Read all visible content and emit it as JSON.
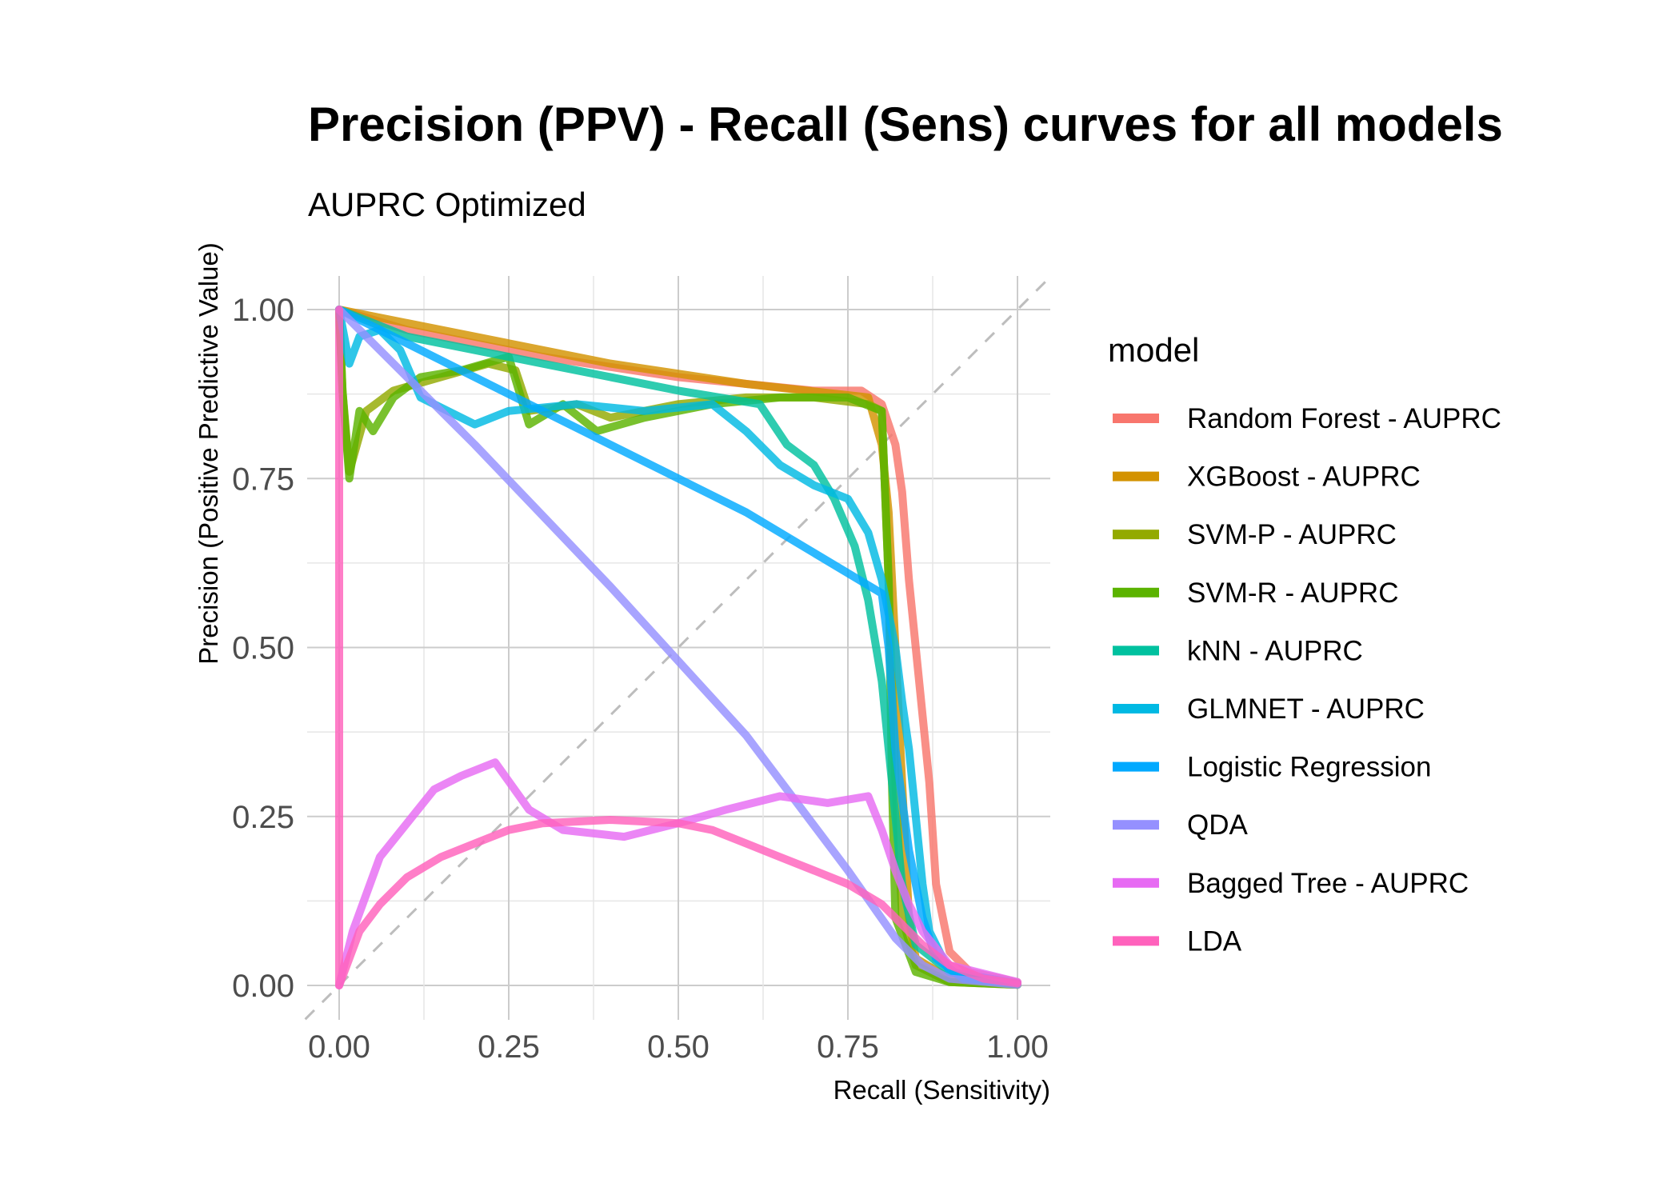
{
  "chart_data": {
    "type": "line",
    "title": "Precision (PPV) - Recall (Sens) curves for all models",
    "subtitle": "AUPRC Optimized",
    "xlabel": "Recall (Sensitivity)",
    "ylabel": "Precision (Positive Predictive Value)",
    "xlim": [
      0,
      1
    ],
    "ylim": [
      0,
      1
    ],
    "x_ticks": [
      "0.00",
      "0.25",
      "0.50",
      "0.75",
      "1.00"
    ],
    "y_ticks": [
      "0.00",
      "0.25",
      "0.50",
      "0.75",
      "1.00"
    ],
    "grid": true,
    "reference_line": {
      "style": "dashed",
      "color": "#bdbdbd",
      "from": [
        0,
        0
      ],
      "to": [
        1,
        1
      ]
    },
    "legend": {
      "title": "model",
      "position": "right"
    },
    "series": [
      {
        "name": "Random Forest - AUPRC",
        "color": "#F8766D",
        "points": [
          [
            0,
            1
          ],
          [
            0.1,
            0.97
          ],
          [
            0.3,
            0.93
          ],
          [
            0.5,
            0.9
          ],
          [
            0.7,
            0.88
          ],
          [
            0.77,
            0.88
          ],
          [
            0.8,
            0.86
          ],
          [
            0.82,
            0.8
          ],
          [
            0.83,
            0.73
          ],
          [
            0.84,
            0.6
          ],
          [
            0.85,
            0.5
          ],
          [
            0.86,
            0.4
          ],
          [
            0.87,
            0.3
          ],
          [
            0.88,
            0.15
          ],
          [
            0.9,
            0.05
          ],
          [
            0.93,
            0.02
          ],
          [
            1,
            0.005
          ]
        ]
      },
      {
        "name": "XGBoost - AUPRC",
        "color": "#D39200",
        "points": [
          [
            0,
            1
          ],
          [
            0.2,
            0.96
          ],
          [
            0.4,
            0.92
          ],
          [
            0.6,
            0.89
          ],
          [
            0.78,
            0.87
          ],
          [
            0.8,
            0.8
          ],
          [
            0.81,
            0.7
          ],
          [
            0.82,
            0.5
          ],
          [
            0.83,
            0.3
          ],
          [
            0.84,
            0.1
          ],
          [
            0.85,
            0.04
          ],
          [
            0.9,
            0.01
          ],
          [
            1,
            0.003
          ]
        ]
      },
      {
        "name": "SVM-P - AUPRC",
        "color": "#93AA00",
        "points": [
          [
            0,
            1
          ],
          [
            0.005,
            0.88
          ],
          [
            0.015,
            0.76
          ],
          [
            0.04,
            0.85
          ],
          [
            0.08,
            0.88
          ],
          [
            0.15,
            0.9
          ],
          [
            0.22,
            0.92
          ],
          [
            0.26,
            0.91
          ],
          [
            0.28,
            0.85
          ],
          [
            0.35,
            0.86
          ],
          [
            0.4,
            0.84
          ],
          [
            0.5,
            0.86
          ],
          [
            0.6,
            0.87
          ],
          [
            0.7,
            0.87
          ],
          [
            0.78,
            0.86
          ],
          [
            0.8,
            0.85
          ],
          [
            0.81,
            0.6
          ],
          [
            0.82,
            0.3
          ],
          [
            0.83,
            0.1
          ],
          [
            0.85,
            0.03
          ],
          [
            0.9,
            0.005
          ],
          [
            1,
            0.001
          ]
        ]
      },
      {
        "name": "SVM-R - AUPRC",
        "color": "#5BB300",
        "points": [
          [
            0,
            1
          ],
          [
            0.005,
            0.88
          ],
          [
            0.015,
            0.75
          ],
          [
            0.03,
            0.85
          ],
          [
            0.05,
            0.82
          ],
          [
            0.08,
            0.87
          ],
          [
            0.12,
            0.9
          ],
          [
            0.18,
            0.91
          ],
          [
            0.25,
            0.93
          ],
          [
            0.28,
            0.83
          ],
          [
            0.33,
            0.86
          ],
          [
            0.38,
            0.82
          ],
          [
            0.45,
            0.84
          ],
          [
            0.55,
            0.86
          ],
          [
            0.65,
            0.87
          ],
          [
            0.75,
            0.87
          ],
          [
            0.8,
            0.85
          ],
          [
            0.81,
            0.6
          ],
          [
            0.815,
            0.3
          ],
          [
            0.82,
            0.1
          ],
          [
            0.85,
            0.02
          ],
          [
            0.9,
            0.005
          ],
          [
            1,
            0.001
          ]
        ]
      },
      {
        "name": "kNN - AUPRC",
        "color": "#00C19F",
        "points": [
          [
            0,
            1
          ],
          [
            0.1,
            0.96
          ],
          [
            0.3,
            0.92
          ],
          [
            0.5,
            0.88
          ],
          [
            0.62,
            0.86
          ],
          [
            0.66,
            0.8
          ],
          [
            0.7,
            0.77
          ],
          [
            0.73,
            0.72
          ],
          [
            0.76,
            0.65
          ],
          [
            0.78,
            0.57
          ],
          [
            0.8,
            0.45
          ],
          [
            0.81,
            0.35
          ],
          [
            0.82,
            0.25
          ],
          [
            0.83,
            0.15
          ],
          [
            0.85,
            0.06
          ],
          [
            0.9,
            0.02
          ],
          [
            1,
            0.003
          ]
        ]
      },
      {
        "name": "GLMNET - AUPRC",
        "color": "#00B9E3",
        "points": [
          [
            0,
            1
          ],
          [
            0.015,
            0.92
          ],
          [
            0.03,
            0.96
          ],
          [
            0.06,
            0.97
          ],
          [
            0.09,
            0.94
          ],
          [
            0.12,
            0.87
          ],
          [
            0.2,
            0.83
          ],
          [
            0.25,
            0.85
          ],
          [
            0.35,
            0.86
          ],
          [
            0.45,
            0.85
          ],
          [
            0.55,
            0.86
          ],
          [
            0.6,
            0.82
          ],
          [
            0.65,
            0.77
          ],
          [
            0.7,
            0.74
          ],
          [
            0.75,
            0.72
          ],
          [
            0.78,
            0.67
          ],
          [
            0.8,
            0.6
          ],
          [
            0.82,
            0.5
          ],
          [
            0.83,
            0.42
          ],
          [
            0.84,
            0.35
          ],
          [
            0.85,
            0.25
          ],
          [
            0.86,
            0.15
          ],
          [
            0.87,
            0.08
          ],
          [
            0.9,
            0.02
          ],
          [
            1,
            0.003
          ]
        ]
      },
      {
        "name": "Logistic Regression",
        "color": "#00A9FF",
        "points": [
          [
            0,
            1
          ],
          [
            0.3,
            0.85
          ],
          [
            0.6,
            0.7
          ],
          [
            0.8,
            0.58
          ],
          [
            0.81,
            0.5
          ],
          [
            0.82,
            0.35
          ],
          [
            0.84,
            0.2
          ],
          [
            0.86,
            0.1
          ],
          [
            0.88,
            0.04
          ],
          [
            0.92,
            0.01
          ],
          [
            1,
            0.003
          ]
        ]
      },
      {
        "name": "QDA",
        "color": "#9590FF",
        "points": [
          [
            0,
            1
          ],
          [
            0.2,
            0.8
          ],
          [
            0.4,
            0.59
          ],
          [
            0.6,
            0.37
          ],
          [
            0.75,
            0.17
          ],
          [
            0.82,
            0.07
          ],
          [
            0.86,
            0.03
          ],
          [
            0.9,
            0.01
          ],
          [
            1,
            0.001
          ]
        ]
      },
      {
        "name": "Bagged Tree - AUPRC",
        "color": "#E76BF3",
        "points": [
          [
            0,
            0
          ],
          [
            0.02,
            0.08
          ],
          [
            0.06,
            0.19
          ],
          [
            0.1,
            0.24
          ],
          [
            0.14,
            0.29
          ],
          [
            0.18,
            0.31
          ],
          [
            0.23,
            0.33
          ],
          [
            0.28,
            0.26
          ],
          [
            0.33,
            0.23
          ],
          [
            0.42,
            0.22
          ],
          [
            0.5,
            0.24
          ],
          [
            0.57,
            0.26
          ],
          [
            0.65,
            0.28
          ],
          [
            0.72,
            0.27
          ],
          [
            0.78,
            0.28
          ],
          [
            0.8,
            0.23
          ],
          [
            0.82,
            0.17
          ],
          [
            0.84,
            0.12
          ],
          [
            0.86,
            0.08
          ],
          [
            0.9,
            0.03
          ],
          [
            1,
            0.005
          ]
        ]
      },
      {
        "name": "LDA",
        "color": "#FF62BC",
        "points": [
          [
            0,
            0
          ],
          [
            0,
            1
          ],
          [
            0,
            0
          ],
          [
            0.03,
            0.08
          ],
          [
            0.06,
            0.12
          ],
          [
            0.1,
            0.16
          ],
          [
            0.15,
            0.19
          ],
          [
            0.2,
            0.21
          ],
          [
            0.25,
            0.23
          ],
          [
            0.3,
            0.24
          ],
          [
            0.4,
            0.245
          ],
          [
            0.5,
            0.24
          ],
          [
            0.55,
            0.23
          ],
          [
            0.6,
            0.21
          ],
          [
            0.65,
            0.19
          ],
          [
            0.7,
            0.17
          ],
          [
            0.75,
            0.15
          ],
          [
            0.8,
            0.12
          ],
          [
            0.83,
            0.09
          ],
          [
            0.86,
            0.06
          ],
          [
            0.9,
            0.03
          ],
          [
            0.95,
            0.01
          ],
          [
            1,
            0.003
          ]
        ]
      }
    ]
  }
}
